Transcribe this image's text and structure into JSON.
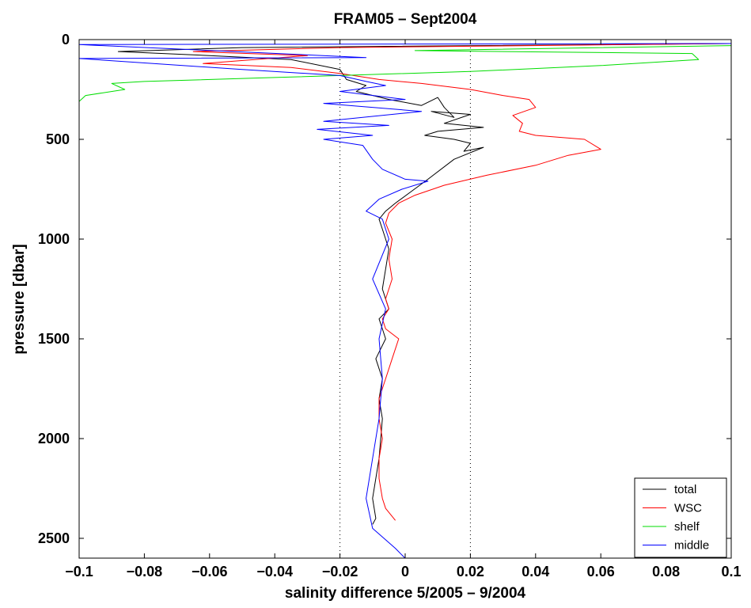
{
  "chart_data": {
    "type": "line",
    "title": "FRAM05 – Sept2004",
    "xlabel": "salinity difference 5/2005 – 9/2004",
    "ylabel": "pressure [dbar]",
    "xlim": [
      -0.1,
      0.1
    ],
    "ylim": [
      0,
      2600
    ],
    "y_reversed": true,
    "x_ticks": [
      -0.1,
      -0.08,
      -0.06,
      -0.04,
      -0.02,
      0,
      0.02,
      0.04,
      0.06,
      0.08,
      0.1
    ],
    "x_tick_labels": [
      "−0.1",
      "−0.08",
      "−0.06",
      "−0.04",
      "−0.02",
      "0",
      "0.02",
      "0.04",
      "0.06",
      "0.08",
      "0.1"
    ],
    "y_ticks": [
      0,
      500,
      1000,
      1500,
      2000,
      2500
    ],
    "y_tick_labels": [
      "0",
      "500",
      "1000",
      "1500",
      "2000",
      "2500"
    ],
    "reference_lines_x": [
      -0.02,
      0.02
    ],
    "legend_position": "bottom-right",
    "series": [
      {
        "name": "total",
        "color": "#000000",
        "x": [
          0.1,
          -0.05,
          -0.088,
          -0.06,
          -0.035,
          -0.02,
          -0.018,
          -0.012,
          -0.015,
          -0.005,
          0.005,
          0.01,
          0.012,
          0.015,
          0.008,
          0.02,
          0.012,
          0.024,
          0.01,
          0.006,
          0.015,
          0.02,
          0.018,
          0.024,
          0.015,
          0.007,
          0.002,
          -0.003,
          -0.006,
          -0.008,
          -0.007,
          -0.005,
          -0.006,
          -0.007,
          -0.005,
          -0.008,
          -0.007,
          -0.006,
          -0.009,
          -0.007,
          -0.008,
          -0.007,
          -0.008,
          -0.01,
          -0.009,
          -0.01
        ],
        "y": [
          20,
          40,
          60,
          80,
          100,
          150,
          200,
          230,
          260,
          300,
          330,
          290,
          340,
          390,
          360,
          375,
          420,
          440,
          460,
          480,
          500,
          520,
          560,
          540,
          600,
          700,
          760,
          820,
          860,
          900,
          950,
          1050,
          1150,
          1250,
          1350,
          1400,
          1450,
          1500,
          1600,
          1700,
          1800,
          1900,
          2100,
          2300,
          2400,
          2430
        ]
      },
      {
        "name": "WSC",
        "color": "#ff0000",
        "x": [
          0.1,
          -0.02,
          -0.065,
          -0.03,
          -0.062,
          -0.035,
          -0.02,
          -0.008,
          0.005,
          0.02,
          0.03,
          0.038,
          0.04,
          0.033,
          0.036,
          0.035,
          0.04,
          0.055,
          0.06,
          0.05,
          0.04,
          0.025,
          0.012,
          0.003,
          -0.002,
          -0.005,
          -0.006,
          -0.004,
          -0.005,
          -0.004,
          -0.006,
          -0.005,
          -0.007,
          -0.006,
          -0.002,
          -0.004,
          -0.006,
          -0.008,
          -0.008,
          -0.007,
          -0.008,
          -0.008,
          -0.007,
          -0.006,
          -0.003
        ],
        "y": [
          20,
          40,
          60,
          80,
          120,
          140,
          170,
          200,
          220,
          250,
          280,
          300,
          340,
          380,
          420,
          460,
          480,
          500,
          550,
          580,
          630,
          680,
          730,
          780,
          820,
          870,
          920,
          1000,
          1100,
          1200,
          1300,
          1350,
          1400,
          1450,
          1500,
          1600,
          1700,
          1800,
          1900,
          2000,
          2100,
          2200,
          2300,
          2350,
          2410
        ]
      },
      {
        "name": "shelf",
        "color": "#00dd00",
        "x": [
          0.1,
          0.003,
          0.088,
          0.09,
          0.06,
          0.02,
          -0.04,
          -0.08,
          -0.09,
          -0.086,
          -0.098,
          -0.1
        ],
        "y": [
          30,
          55,
          70,
          100,
          130,
          160,
          190,
          210,
          220,
          250,
          280,
          310
        ]
      },
      {
        "name": "middle",
        "color": "#0000ff",
        "x": [
          0.1,
          -0.1,
          -0.012,
          -0.1,
          -0.05,
          -0.02,
          -0.012,
          -0.006,
          -0.02,
          0.0,
          -0.025,
          0.005,
          -0.025,
          -0.005,
          -0.027,
          -0.01,
          -0.025,
          -0.013,
          -0.01,
          -0.007,
          0.0,
          0.007,
          -0.001,
          -0.008,
          -0.012,
          -0.007,
          -0.005,
          -0.01,
          -0.006,
          -0.008,
          -0.007,
          -0.008,
          -0.01,
          -0.012,
          -0.01,
          -0.003,
          0.0
        ],
        "y": [
          20,
          25,
          90,
          95,
          150,
          180,
          210,
          230,
          260,
          300,
          320,
          360,
          410,
          430,
          450,
          480,
          500,
          530,
          600,
          650,
          700,
          710,
          750,
          800,
          860,
          900,
          1000,
          1200,
          1350,
          1500,
          1700,
          1900,
          2100,
          2300,
          2450,
          2550,
          2600
        ]
      }
    ]
  }
}
